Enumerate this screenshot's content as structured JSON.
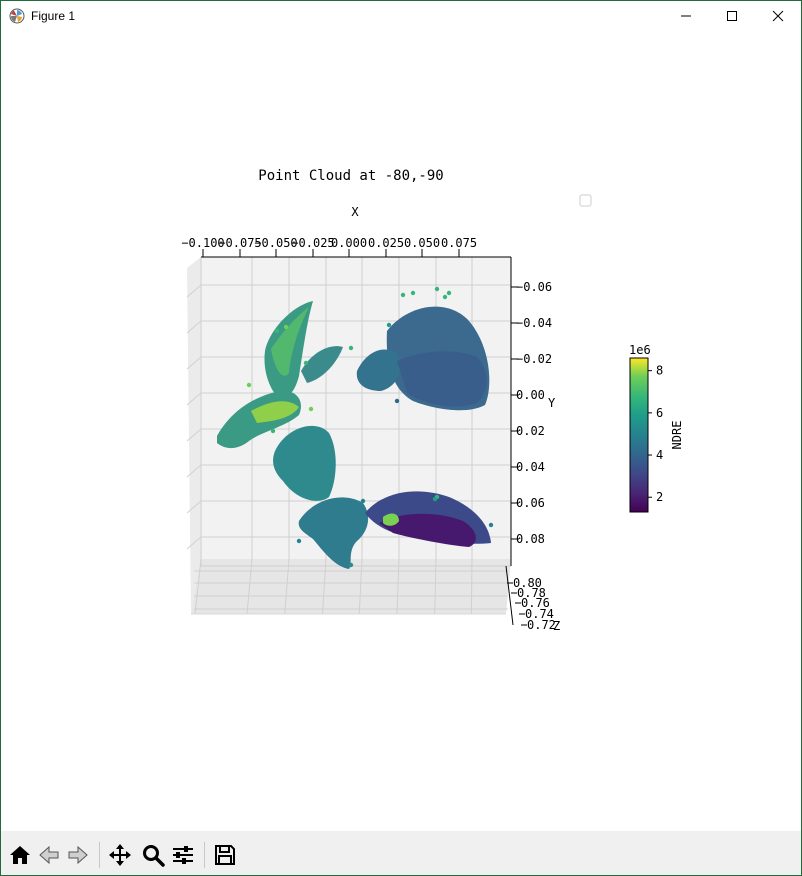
{
  "window": {
    "title": "Figure 1",
    "icons": [
      "matplotlib-icon",
      "minimize-icon",
      "maximize-icon",
      "close-icon"
    ]
  },
  "chart_data": {
    "type": "scatter",
    "projection": "3d",
    "title": "Point Cloud at  -80,-90",
    "xlabel": "X",
    "ylabel": "Y",
    "zlabel": "Z",
    "x_ticks": [
      "−0.100",
      "−0.075",
      "−0.050",
      "−0.025",
      "0.000",
      "0.025",
      "0.050",
      "0.075"
    ],
    "y_ticks": [
      "−0.06",
      "−0.04",
      "−0.02",
      "0.00",
      "0.02",
      "0.04",
      "0.06",
      "0.08"
    ],
    "z_ticks": [
      "0.80",
      "0.78",
      "0.76",
      "0.74",
      "0.72"
    ],
    "colorbar": {
      "label": "NDRE",
      "offset": "1e6",
      "ticks": [
        "2",
        "4",
        "6",
        "8"
      ],
      "range": [
        1.3,
        8.6
      ],
      "colormap": "viridis"
    },
    "grid": true,
    "legend": "top-right (empty)"
  },
  "toolbar": {
    "buttons": [
      "home-icon",
      "back-icon",
      "forward-icon",
      "pan-icon",
      "zoom-icon",
      "configure-subplots-icon",
      "save-icon"
    ]
  }
}
